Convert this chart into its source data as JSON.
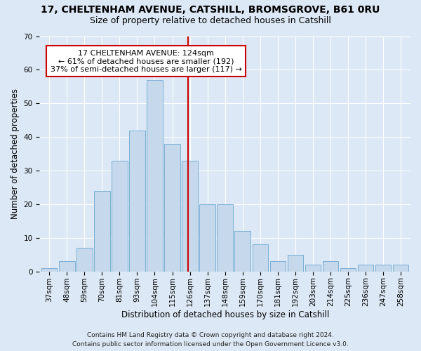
{
  "title1": "17, CHELTENHAM AVENUE, CATSHILL, BROMSGROVE, B61 0RU",
  "title2": "Size of property relative to detached houses in Catshill",
  "xlabel": "Distribution of detached houses by size in Catshill",
  "ylabel": "Number of detached properties",
  "footnote1": "Contains HM Land Registry data © Crown copyright and database right 2024.",
  "footnote2": "Contains public sector information licensed under the Open Government Licence v3.0.",
  "categories": [
    "37sqm",
    "48sqm",
    "59sqm",
    "70sqm",
    "81sqm",
    "93sqm",
    "104sqm",
    "115sqm",
    "126sqm",
    "137sqm",
    "148sqm",
    "159sqm",
    "170sqm",
    "181sqm",
    "192sqm",
    "203sqm",
    "214sqm",
    "225sqm",
    "236sqm",
    "247sqm",
    "258sqm"
  ],
  "values": [
    1,
    3,
    7,
    24,
    33,
    42,
    57,
    38,
    33,
    20,
    20,
    12,
    8,
    3,
    5,
    2,
    3,
    1,
    2,
    2,
    2
  ],
  "bar_color": "#c6d9ec",
  "bar_edge_color": "#7aafd4",
  "vline_color": "#cc0000",
  "annotation_text": "17 CHELTENHAM AVENUE: 124sqm\n← 61% of detached houses are smaller (192)\n37% of semi-detached houses are larger (117) →",
  "annotation_box_color": "#ffffff",
  "annotation_box_edge": "#cc0000",
  "ylim": [
    0,
    70
  ],
  "yticks": [
    0,
    10,
    20,
    30,
    40,
    50,
    60,
    70
  ],
  "bg_color": "#dce8f5",
  "plot_bg_color": "#dce8f5",
  "title1_fontsize": 10,
  "title2_fontsize": 9,
  "annotation_fontsize": 8,
  "axis_label_fontsize": 8.5,
  "tick_fontsize": 7.5,
  "footnote_fontsize": 6.5,
  "vline_pos": 7.88
}
